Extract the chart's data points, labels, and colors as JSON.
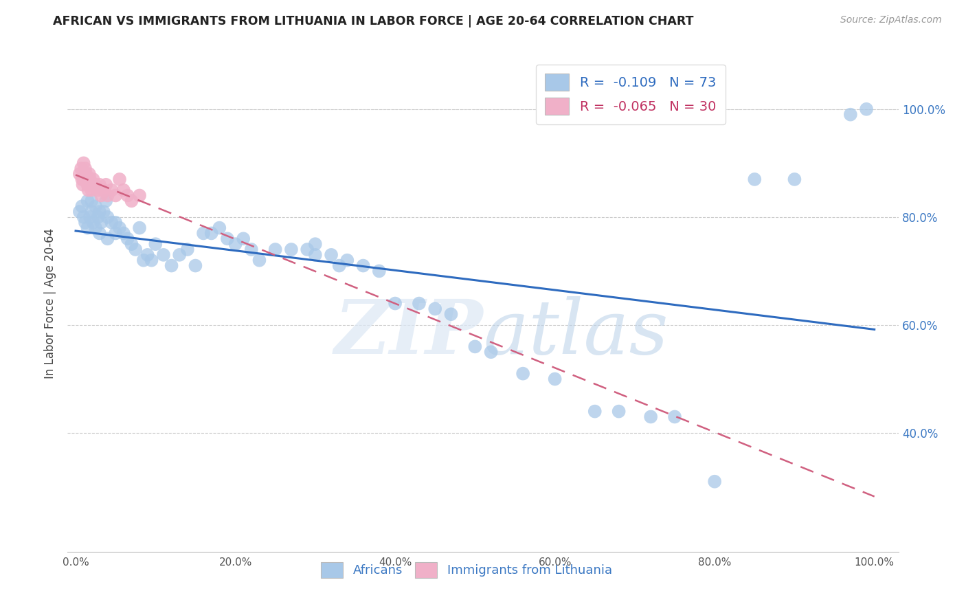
{
  "title": "AFRICAN VS IMMIGRANTS FROM LITHUANIA IN LABOR FORCE | AGE 20-64 CORRELATION CHART",
  "source": "Source: ZipAtlas.com",
  "ylabel": "In Labor Force | Age 20-64",
  "blue_r": -0.109,
  "blue_n": 73,
  "pink_r": -0.065,
  "pink_n": 30,
  "blue_color": "#a8c8e8",
  "pink_color": "#f0b0c8",
  "blue_line_color": "#2e6bbf",
  "pink_line_color": "#d06080",
  "watermark": "ZIPatlas",
  "blue_x": [
    0.005,
    0.008,
    0.01,
    0.012,
    0.015,
    0.015,
    0.018,
    0.02,
    0.02,
    0.022,
    0.025,
    0.025,
    0.028,
    0.03,
    0.03,
    0.032,
    0.035,
    0.038,
    0.04,
    0.04,
    0.045,
    0.05,
    0.05,
    0.055,
    0.06,
    0.065,
    0.07,
    0.075,
    0.08,
    0.085,
    0.09,
    0.095,
    0.1,
    0.11,
    0.12,
    0.13,
    0.14,
    0.15,
    0.16,
    0.17,
    0.18,
    0.19,
    0.2,
    0.21,
    0.22,
    0.23,
    0.25,
    0.27,
    0.29,
    0.3,
    0.3,
    0.32,
    0.33,
    0.34,
    0.36,
    0.38,
    0.4,
    0.43,
    0.45,
    0.47,
    0.5,
    0.52,
    0.56,
    0.6,
    0.65,
    0.68,
    0.72,
    0.75,
    0.8,
    0.85,
    0.9,
    0.97,
    0.99
  ],
  "blue_y": [
    0.81,
    0.82,
    0.8,
    0.79,
    0.78,
    0.83,
    0.8,
    0.83,
    0.81,
    0.79,
    0.78,
    0.82,
    0.8,
    0.77,
    0.81,
    0.79,
    0.81,
    0.83,
    0.8,
    0.76,
    0.79,
    0.79,
    0.77,
    0.78,
    0.77,
    0.76,
    0.75,
    0.74,
    0.78,
    0.72,
    0.73,
    0.72,
    0.75,
    0.73,
    0.71,
    0.73,
    0.74,
    0.71,
    0.77,
    0.77,
    0.78,
    0.76,
    0.75,
    0.76,
    0.74,
    0.72,
    0.74,
    0.74,
    0.74,
    0.75,
    0.73,
    0.73,
    0.71,
    0.72,
    0.71,
    0.7,
    0.64,
    0.64,
    0.63,
    0.62,
    0.56,
    0.55,
    0.51,
    0.5,
    0.44,
    0.44,
    0.43,
    0.43,
    0.31,
    0.87,
    0.87,
    0.99,
    1.0
  ],
  "pink_x": [
    0.005,
    0.007,
    0.008,
    0.009,
    0.01,
    0.01,
    0.012,
    0.013,
    0.014,
    0.015,
    0.016,
    0.017,
    0.018,
    0.019,
    0.02,
    0.022,
    0.025,
    0.028,
    0.03,
    0.032,
    0.035,
    0.038,
    0.04,
    0.045,
    0.05,
    0.055,
    0.06,
    0.065,
    0.07,
    0.08
  ],
  "pink_y": [
    0.88,
    0.89,
    0.87,
    0.86,
    0.87,
    0.9,
    0.89,
    0.88,
    0.87,
    0.86,
    0.85,
    0.88,
    0.87,
    0.86,
    0.85,
    0.87,
    0.86,
    0.85,
    0.86,
    0.84,
    0.85,
    0.86,
    0.84,
    0.85,
    0.84,
    0.87,
    0.85,
    0.84,
    0.83,
    0.84
  ]
}
